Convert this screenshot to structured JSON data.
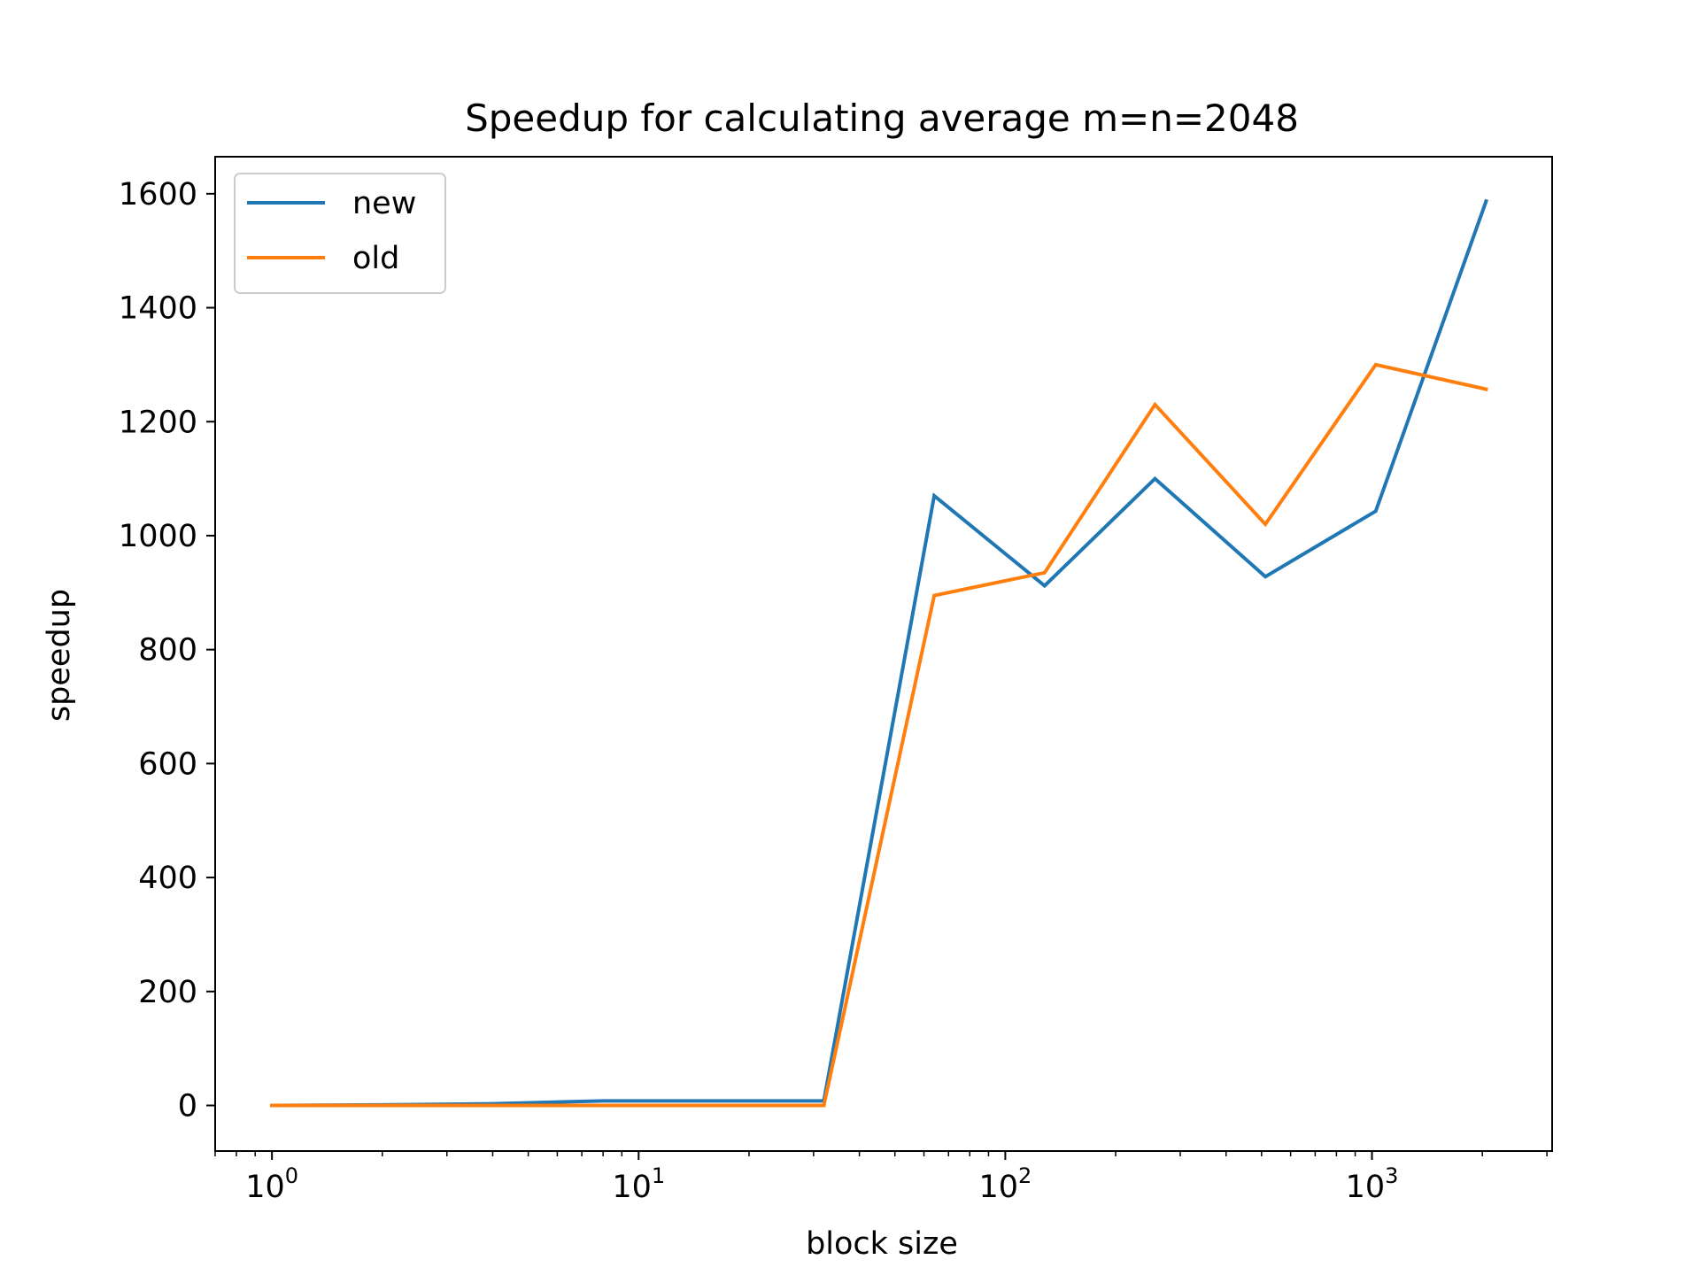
{
  "chart_data": {
    "type": "line",
    "title": "Speedup for calculating average m=n=2048",
    "xlabel": "block size",
    "ylabel": "speedup",
    "xscale": "log",
    "xlim": [
      0.7,
      3100
    ],
    "ylim": [
      -80,
      1665
    ],
    "x_ticks": [
      {
        "value": 1,
        "base": "10",
        "exp": "0"
      },
      {
        "value": 10,
        "base": "10",
        "exp": "1"
      },
      {
        "value": 100,
        "base": "10",
        "exp": "2"
      },
      {
        "value": 1000,
        "base": "10",
        "exp": "3"
      }
    ],
    "y_ticks": [
      0,
      200,
      400,
      600,
      800,
      1000,
      1200,
      1400,
      1600
    ],
    "y_tick_labels": [
      "0",
      "200",
      "400",
      "600",
      "800",
      "1000",
      "1200",
      "1400",
      "1600"
    ],
    "grid": false,
    "legend_position": "top-left",
    "x": [
      1,
      2,
      4,
      8,
      16,
      32,
      64,
      128,
      256,
      512,
      1024,
      2048
    ],
    "series": [
      {
        "name": "new",
        "color": "#1f77b4",
        "values": [
          0,
          1,
          3,
          8,
          8,
          8,
          1070,
          912,
          1100,
          928,
          1043,
          1587
        ]
      },
      {
        "name": "old",
        "color": "#ff7f0e",
        "values": [
          0,
          0,
          0,
          0,
          0,
          0,
          895,
          935,
          1230,
          1020,
          1300,
          1257
        ]
      }
    ]
  }
}
